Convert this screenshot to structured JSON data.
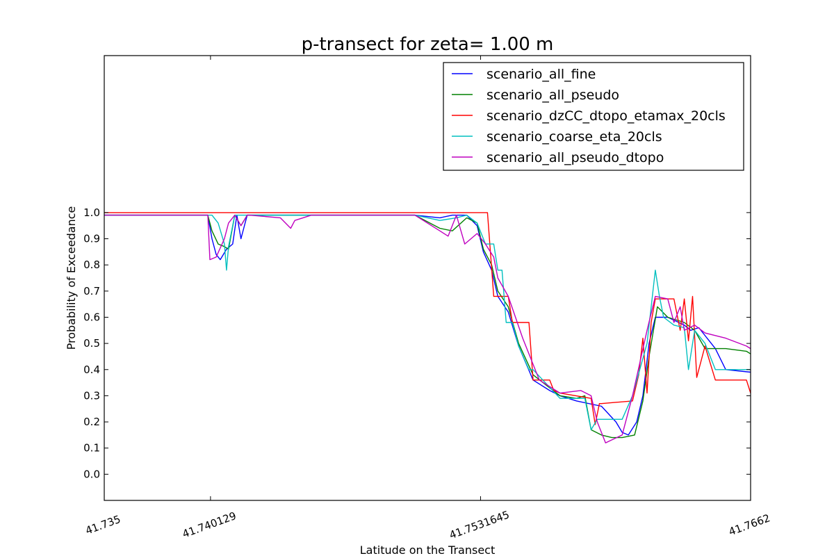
{
  "chart_data": {
    "type": "line",
    "title": "p-transect for zeta= 1.00 m",
    "xlabel": "Latitude on the Transect",
    "ylabel": "Probability of Exceedance",
    "xlim": [
      41.735,
      41.7662
    ],
    "ylim": [
      -0.1,
      1.6
    ],
    "xticks": [
      41.735,
      41.740129,
      41.7531645,
      41.7662
    ],
    "xtick_labels": [
      "41.735",
      "41.740129",
      "41.7531645",
      "41.7662"
    ],
    "yticks": [
      0.0,
      0.1,
      0.2,
      0.3,
      0.4,
      0.5,
      0.6,
      0.7,
      0.8,
      0.9,
      1.0
    ],
    "ytick_labels": [
      "0.0",
      "0.1",
      "0.2",
      "0.3",
      "0.4",
      "0.5",
      "0.6",
      "0.7",
      "0.8",
      "0.9",
      "1.0"
    ],
    "grid": false,
    "legend_position": "top-right",
    "series": [
      {
        "name": "scenario_all_fine",
        "color": "#0000ff",
        "x": [
          41.735,
          41.74,
          41.7402,
          41.7404,
          41.7406,
          41.7409,
          41.7412,
          41.7414,
          41.7416,
          41.7419,
          41.7422,
          41.7425,
          41.7428,
          41.7431,
          41.7433,
          41.745,
          41.7475,
          41.75,
          41.7512,
          41.7518,
          41.7525,
          41.753,
          41.7533,
          41.7537,
          41.754,
          41.7545,
          41.755,
          41.7557,
          41.7565,
          41.757,
          41.7578,
          41.759,
          41.7597,
          41.76,
          41.7603,
          41.7607,
          41.761,
          41.7613,
          41.7616,
          41.7622,
          41.763,
          41.7633,
          41.7637,
          41.7641,
          41.7645,
          41.765,
          41.7662
        ],
        "y": [
          0.99,
          0.99,
          0.9,
          0.84,
          0.82,
          0.86,
          0.88,
          0.99,
          0.9,
          0.99,
          0.99,
          0.99,
          0.99,
          0.99,
          0.99,
          0.99,
          0.99,
          0.99,
          0.98,
          0.99,
          0.99,
          0.95,
          0.85,
          0.78,
          0.68,
          0.62,
          0.49,
          0.36,
          0.32,
          0.3,
          0.28,
          0.26,
          0.2,
          0.16,
          0.15,
          0.2,
          0.3,
          0.5,
          0.6,
          0.6,
          0.57,
          0.55,
          0.56,
          0.52,
          0.48,
          0.4,
          0.39
        ]
      },
      {
        "name": "scenario_all_pseudo",
        "color": "#008000",
        "x": [
          41.735,
          41.74,
          41.7402,
          41.7405,
          41.7408,
          41.741,
          41.7413,
          41.7416,
          41.7419,
          41.7422,
          41.745,
          41.7475,
          41.75,
          41.7512,
          41.7518,
          41.7525,
          41.753,
          41.7533,
          41.7537,
          41.754,
          41.7545,
          41.755,
          41.7557,
          41.7565,
          41.757,
          41.7578,
          41.7582,
          41.7585,
          41.759,
          41.7595,
          41.76,
          41.7606,
          41.761,
          41.7613,
          41.7617,
          41.7622,
          41.763,
          41.7635,
          41.764,
          41.765,
          41.766,
          41.7662
        ],
        "y": [
          0.99,
          0.99,
          0.93,
          0.88,
          0.87,
          0.86,
          0.99,
          0.95,
          0.99,
          0.99,
          0.99,
          0.99,
          0.99,
          0.94,
          0.93,
          0.98,
          0.96,
          0.86,
          0.8,
          0.7,
          0.64,
          0.5,
          0.38,
          0.33,
          0.3,
          0.29,
          0.3,
          0.17,
          0.15,
          0.14,
          0.14,
          0.15,
          0.28,
          0.45,
          0.64,
          0.6,
          0.58,
          0.55,
          0.48,
          0.48,
          0.47,
          0.46
        ]
      },
      {
        "name": "scenario_dzCC_dtopo_etamax_20cls",
        "color": "#ff0000",
        "x": [
          41.735,
          41.7535,
          41.7538,
          41.7545,
          41.7547,
          41.7555,
          41.7557,
          41.7565,
          41.7567,
          41.757,
          41.7585,
          41.7587,
          41.7589,
          41.759,
          41.7605,
          41.7608,
          41.761,
          41.7612,
          41.7614,
          41.7616,
          41.762,
          41.7625,
          41.7628,
          41.763,
          41.7632,
          41.7634,
          41.7636,
          41.764,
          41.7645,
          41.765,
          41.766,
          41.7662
        ],
        "y": [
          1.0,
          1.0,
          0.68,
          0.68,
          0.58,
          0.58,
          0.36,
          0.36,
          0.32,
          0.31,
          0.29,
          0.19,
          0.27,
          0.27,
          0.28,
          0.38,
          0.52,
          0.31,
          0.58,
          0.67,
          0.67,
          0.67,
          0.55,
          0.67,
          0.51,
          0.68,
          0.37,
          0.49,
          0.36,
          0.36,
          0.36,
          0.31
        ]
      },
      {
        "name": "scenario_coarse_eta_20cls",
        "color": "#00bfbf",
        "x": [
          41.735,
          41.7402,
          41.7405,
          41.7408,
          41.7409,
          41.741,
          41.7413,
          41.7415,
          41.7418,
          41.745,
          41.75,
          41.7512,
          41.752,
          41.7525,
          41.753,
          41.7534,
          41.7538,
          41.754,
          41.7542,
          41.7544,
          41.7547,
          41.755,
          41.7555,
          41.7557,
          41.757,
          41.7582,
          41.7585,
          41.7588,
          41.76,
          41.7605,
          41.7612,
          41.7616,
          41.7618,
          41.762,
          41.7625,
          41.763,
          41.7632,
          41.7635,
          41.764,
          41.7645,
          41.766,
          41.7662
        ],
        "y": [
          0.99,
          0.99,
          0.96,
          0.88,
          0.78,
          0.87,
          0.99,
          0.99,
          0.99,
          0.99,
          0.99,
          0.97,
          0.98,
          0.99,
          0.96,
          0.88,
          0.88,
          0.78,
          0.78,
          0.58,
          0.58,
          0.49,
          0.4,
          0.4,
          0.29,
          0.29,
          0.17,
          0.21,
          0.21,
          0.3,
          0.5,
          0.78,
          0.68,
          0.6,
          0.57,
          0.56,
          0.4,
          0.55,
          0.5,
          0.4,
          0.4,
          0.4
        ]
      },
      {
        "name": "scenario_all_pseudo_dtopo",
        "color": "#bf00bf",
        "x": [
          41.735,
          41.74,
          41.7401,
          41.7404,
          41.7408,
          41.741,
          41.7413,
          41.7416,
          41.7419,
          41.742,
          41.7435,
          41.744,
          41.7442,
          41.745,
          41.7475,
          41.75,
          41.7512,
          41.7516,
          41.752,
          41.7524,
          41.753,
          41.7534,
          41.7538,
          41.754,
          41.7545,
          41.7552,
          41.756,
          41.757,
          41.758,
          41.7585,
          41.7588,
          41.7592,
          41.76,
          41.7605,
          41.7612,
          41.7616,
          41.7622,
          41.7625,
          41.7628,
          41.763,
          41.7635,
          41.764,
          41.765,
          41.766,
          41.7662
        ],
        "y": [
          0.99,
          0.99,
          0.82,
          0.83,
          0.9,
          0.96,
          0.99,
          0.95,
          0.99,
          0.99,
          0.98,
          0.94,
          0.97,
          0.99,
          0.99,
          0.99,
          0.93,
          0.91,
          0.99,
          0.88,
          0.92,
          0.88,
          0.83,
          0.75,
          0.68,
          0.52,
          0.36,
          0.31,
          0.32,
          0.3,
          0.2,
          0.12,
          0.15,
          0.3,
          0.55,
          0.68,
          0.67,
          0.58,
          0.64,
          0.55,
          0.57,
          0.54,
          0.52,
          0.49,
          0.48
        ]
      }
    ]
  }
}
